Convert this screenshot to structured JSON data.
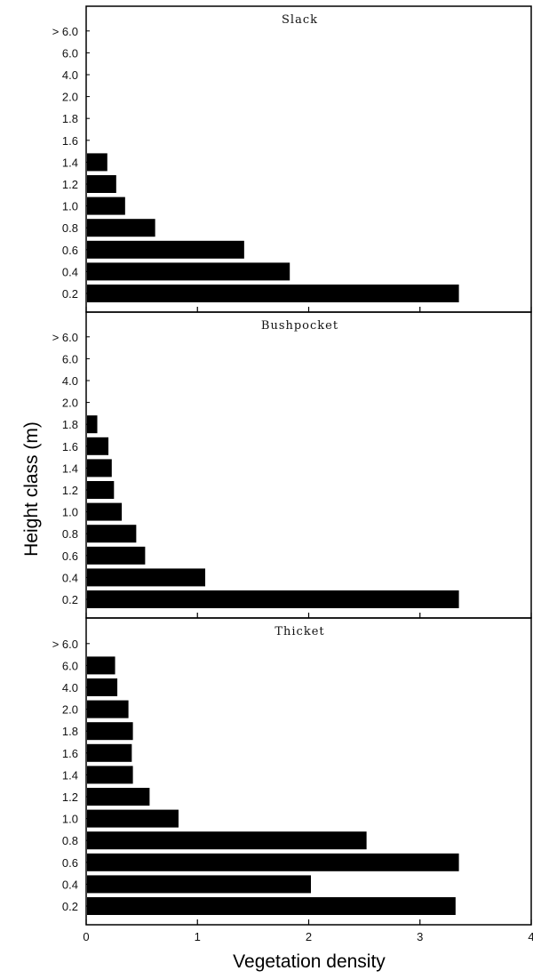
{
  "chart_data": {
    "type": "bar",
    "orientation": "horizontal",
    "ylabel": "Height class (m)",
    "xlabel": "Vegetation density",
    "xlim": [
      0,
      4
    ],
    "x_ticks": [
      "0",
      "1",
      "2",
      "3",
      "4"
    ],
    "panels": [
      {
        "title": "Slack",
        "categories": [
          "0.2",
          "0.4",
          "0.6",
          "0.8",
          "1.0",
          "1.2",
          "1.4",
          "1.6",
          "1.8",
          "2.0",
          "4.0",
          "6.0",
          "> 6.0"
        ],
        "values": [
          3.35,
          1.83,
          1.42,
          0.62,
          0.35,
          0.27,
          0.19,
          0,
          0,
          0,
          0,
          0,
          0
        ]
      },
      {
        "title": "Bushpocket",
        "categories": [
          "0.2",
          "0.4",
          "0.6",
          "0.8",
          "1.0",
          "1.2",
          "1.4",
          "1.6",
          "1.8",
          "2.0",
          "4.0",
          "6.0",
          "> 6.0"
        ],
        "values": [
          3.35,
          1.07,
          0.53,
          0.45,
          0.32,
          0.25,
          0.23,
          0.2,
          0.1,
          0,
          0,
          0,
          0
        ]
      },
      {
        "title": "Thicket",
        "categories": [
          "0.2",
          "0.4",
          "0.6",
          "0.8",
          "1.0",
          "1.2",
          "1.4",
          "1.6",
          "1.8",
          "2.0",
          "4.0",
          "6.0",
          "> 6.0"
        ],
        "values": [
          3.32,
          2.02,
          3.35,
          2.52,
          0.83,
          0.57,
          0.42,
          0.41,
          0.42,
          0.38,
          0.28,
          0.26,
          0
        ]
      }
    ]
  }
}
